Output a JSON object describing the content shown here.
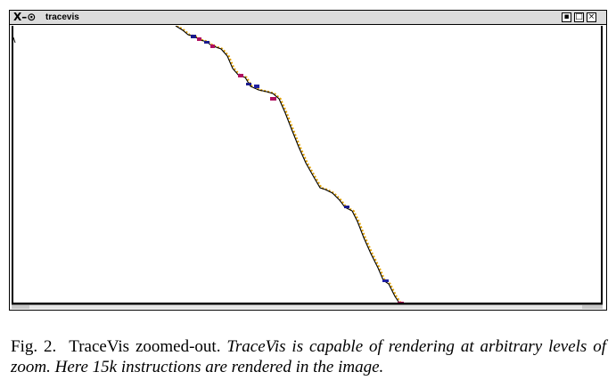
{
  "window": {
    "icon_glyph": "X–⊙",
    "title": "tracevis",
    "buttons": [
      {
        "name": "minimize",
        "glyph": "▪"
      },
      {
        "name": "maximize",
        "glyph": "□"
      },
      {
        "name": "close",
        "glyph": "×"
      }
    ]
  },
  "trace": {
    "line_color": "#000000",
    "accent_color": "#e0a000",
    "marker_colors": [
      "#1a1a8c",
      "#b01060",
      "#2020a0"
    ]
  },
  "caption": {
    "label": "Fig. 2.",
    "title": "TraceVis zoomed-out.",
    "body": "TraceVis is capable of rendering at arbitrary levels of zoom. Here 15k instructions are rendered in the image."
  }
}
